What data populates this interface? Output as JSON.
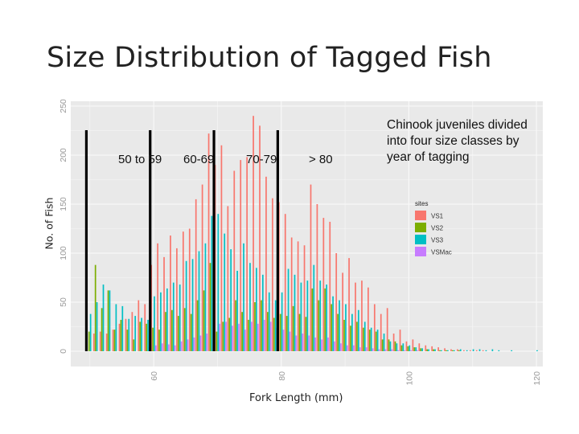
{
  "slide": {
    "title": "Size Distribution of Tagged Fish"
  },
  "chart_data": {
    "type": "bar",
    "ylabel": "No. of Fish",
    "xlabel": "Fork Length (mm)",
    "xlim": [
      47,
      121
    ],
    "ylim": [
      0,
      250
    ],
    "x_ticks": [
      "60",
      "80",
      "100",
      "120"
    ],
    "y_ticks": [
      "0",
      "50",
      "100",
      "150",
      "200",
      "250"
    ],
    "grid": true,
    "background": "#e9e9e9",
    "legend": {
      "title": "sites",
      "position": "right",
      "items": [
        "VS1",
        "VS2",
        "VS3",
        "VSMac"
      ]
    },
    "annotation": "Chinook juveniles divided into four size classes by year of tagging",
    "size_classes": [
      {
        "label": "50 to 59",
        "start": 49.8
      },
      {
        "label": "60-69",
        "start": 59.8
      },
      {
        "label": "70-79",
        "start": 69.8
      },
      {
        "label": "> 80",
        "start": 79.8
      }
    ],
    "x": [
      50,
      51,
      52,
      53,
      54,
      55,
      56,
      57,
      58,
      59,
      60,
      61,
      62,
      63,
      64,
      65,
      66,
      67,
      68,
      69,
      70,
      71,
      72,
      73,
      74,
      75,
      76,
      77,
      78,
      79,
      80,
      81,
      82,
      83,
      84,
      85,
      86,
      87,
      88,
      89,
      90,
      91,
      92,
      93,
      94,
      95,
      96,
      97,
      98,
      99,
      100,
      101,
      102,
      103,
      104,
      105,
      106,
      107,
      108,
      109,
      110,
      111,
      112,
      113,
      114,
      115,
      116,
      117,
      118,
      119,
      120
    ],
    "series": [
      {
        "name": "VS1",
        "color": "#f8766d",
        "values": [
          0,
          18,
          20,
          18,
          22,
          28,
          33,
          40,
          52,
          48,
          88,
          110,
          96,
          118,
          105,
          122,
          125,
          155,
          170,
          222,
          190,
          210,
          148,
          184,
          195,
          198,
          240,
          230,
          178,
          156,
          152,
          140,
          116,
          112,
          108,
          170,
          150,
          136,
          132,
          100,
          80,
          95,
          70,
          72,
          65,
          48,
          38,
          44,
          18,
          22,
          10,
          12,
          8,
          6,
          5,
          4,
          3,
          2,
          2,
          1,
          1,
          1,
          1,
          0,
          0,
          0,
          0,
          0,
          0,
          0,
          0
        ]
      },
      {
        "name": "VS2",
        "color": "#7cae00",
        "values": [
          20,
          88,
          44,
          62,
          22,
          32,
          22,
          12,
          30,
          28,
          24,
          22,
          40,
          42,
          36,
          44,
          38,
          52,
          62,
          90,
          20,
          30,
          34,
          52,
          40,
          32,
          50,
          52,
          40,
          34,
          38,
          36,
          46,
          38,
          35,
          64,
          52,
          64,
          48,
          38,
          32,
          26,
          30,
          24,
          22,
          20,
          12,
          12,
          10,
          6,
          5,
          4,
          3,
          2,
          2,
          1,
          1,
          1,
          1,
          0,
          0,
          0,
          0,
          0,
          0,
          0,
          0,
          0,
          0,
          0,
          0
        ]
      },
      {
        "name": "VS3",
        "color": "#00bfc4",
        "values": [
          38,
          50,
          68,
          62,
          48,
          46,
          33,
          36,
          34,
          32,
          56,
          60,
          64,
          70,
          68,
          92,
          94,
          102,
          110,
          138,
          140,
          120,
          104,
          82,
          110,
          90,
          85,
          78,
          60,
          52,
          60,
          84,
          78,
          70,
          72,
          88,
          72,
          68,
          56,
          52,
          48,
          38,
          42,
          30,
          24,
          22,
          18,
          10,
          8,
          8,
          6,
          4,
          3,
          2,
          2,
          1,
          1,
          1,
          2,
          1,
          2,
          2,
          1,
          2,
          1,
          0,
          1,
          0,
          0,
          0,
          1
        ]
      },
      {
        "name": "VSMac",
        "color": "#c77cff",
        "values": [
          0,
          0,
          0,
          0,
          0,
          0,
          0,
          0,
          0,
          4,
          6,
          8,
          7,
          6,
          10,
          12,
          14,
          16,
          18,
          22,
          28,
          30,
          26,
          28,
          22,
          30,
          28,
          32,
          30,
          24,
          22,
          20,
          16,
          18,
          16,
          14,
          12,
          14,
          10,
          8,
          6,
          6,
          4,
          4,
          3,
          2,
          2,
          2,
          1,
          1,
          1,
          1,
          0,
          0,
          0,
          0,
          0,
          0,
          0,
          0,
          0,
          0,
          0,
          0,
          0,
          0,
          0,
          0,
          0,
          0,
          0
        ]
      }
    ]
  }
}
